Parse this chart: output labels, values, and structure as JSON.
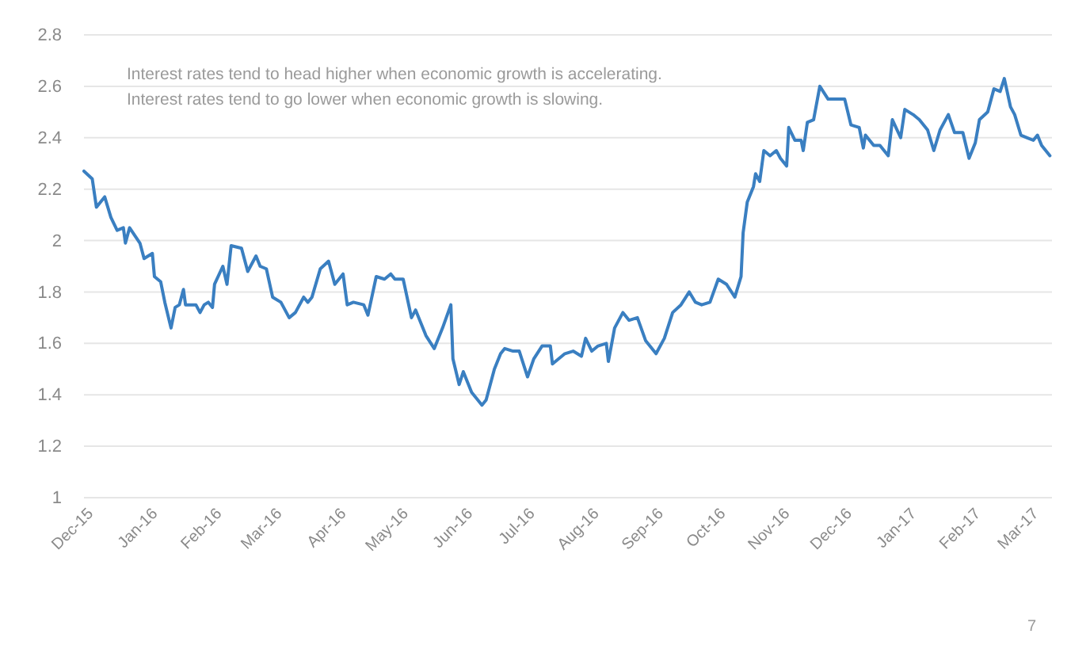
{
  "chart_data": {
    "type": "line",
    "x": [
      "2015-12-01",
      "2015-12-05",
      "2015-12-07",
      "2015-12-11",
      "2015-12-14",
      "2015-12-17",
      "2015-12-20",
      "2015-12-21",
      "2015-12-23",
      "2015-12-28",
      "2015-12-30",
      "2016-01-03",
      "2016-01-04",
      "2016-01-07",
      "2016-01-09",
      "2016-01-12",
      "2016-01-14",
      "2016-01-16",
      "2016-01-18",
      "2016-01-19",
      "2016-01-24",
      "2016-01-26",
      "2016-01-28",
      "2016-01-30",
      "2016-02-01",
      "2016-02-02",
      "2016-02-06",
      "2016-02-08",
      "2016-02-10",
      "2016-02-15",
      "2016-02-18",
      "2016-02-22",
      "2016-02-24",
      "2016-02-27",
      "2016-03-01",
      "2016-03-05",
      "2016-03-09",
      "2016-03-12",
      "2016-03-16",
      "2016-03-18",
      "2016-03-20",
      "2016-03-24",
      "2016-03-28",
      "2016-03-31",
      "2016-04-04",
      "2016-04-06",
      "2016-04-09",
      "2016-04-14",
      "2016-04-16",
      "2016-04-20",
      "2016-04-24",
      "2016-04-27",
      "2016-04-29",
      "2016-05-03",
      "2016-05-07",
      "2016-05-09",
      "2016-05-14",
      "2016-05-18",
      "2016-05-22",
      "2016-05-26",
      "2016-05-27",
      "2016-05-30",
      "2016-06-01",
      "2016-06-05",
      "2016-06-10",
      "2016-06-12",
      "2016-06-16",
      "2016-06-19",
      "2016-06-21",
      "2016-06-25",
      "2016-06-28",
      "2016-07-02",
      "2016-07-05",
      "2016-07-09",
      "2016-07-13",
      "2016-07-14",
      "2016-07-20",
      "2016-07-24",
      "2016-07-28",
      "2016-07-30",
      "2016-08-02",
      "2016-08-05",
      "2016-08-09",
      "2016-08-10",
      "2016-08-13",
      "2016-08-17",
      "2016-08-20",
      "2016-08-24",
      "2016-08-28",
      "2016-09-02",
      "2016-09-06",
      "2016-09-10",
      "2016-09-14",
      "2016-09-18",
      "2016-09-21",
      "2016-09-24",
      "2016-09-28",
      "2016-10-02",
      "2016-10-06",
      "2016-10-10",
      "2016-10-13",
      "2016-10-14",
      "2016-10-16",
      "2016-10-19",
      "2016-10-20",
      "2016-10-22",
      "2016-10-24",
      "2016-10-27",
      "2016-10-30",
      "2016-11-01",
      "2016-11-04",
      "2016-11-05",
      "2016-11-08",
      "2016-11-11",
      "2016-11-12",
      "2016-11-14",
      "2016-11-17",
      "2016-11-20",
      "2016-11-24",
      "2016-11-27",
      "2016-12-02",
      "2016-12-05",
      "2016-12-09",
      "2016-12-11",
      "2016-12-12",
      "2016-12-16",
      "2016-12-19",
      "2016-12-23",
      "2016-12-25",
      "2016-12-29",
      "2016-12-31",
      "2017-01-04",
      "2017-01-07",
      "2017-01-11",
      "2017-01-14",
      "2017-01-17",
      "2017-01-21",
      "2017-01-24",
      "2017-01-28",
      "2017-01-31",
      "2017-02-03",
      "2017-02-05",
      "2017-02-09",
      "2017-02-12",
      "2017-02-15",
      "2017-02-17",
      "2017-02-20",
      "2017-02-22",
      "2017-02-25",
      "2017-02-28",
      "2017-03-03",
      "2017-03-05",
      "2017-03-07",
      "2017-03-11"
    ],
    "series": [
      {
        "color": "#3a7fc1",
        "values": [
          2.27,
          2.24,
          2.13,
          2.17,
          2.09,
          2.04,
          2.05,
          1.99,
          2.05,
          1.99,
          1.93,
          1.95,
          1.86,
          1.84,
          1.76,
          1.66,
          1.74,
          1.75,
          1.81,
          1.75,
          1.75,
          1.72,
          1.75,
          1.76,
          1.74,
          1.83,
          1.9,
          1.83,
          1.98,
          1.97,
          1.88,
          1.94,
          1.9,
          1.89,
          1.78,
          1.76,
          1.7,
          1.72,
          1.78,
          1.76,
          1.78,
          1.89,
          1.92,
          1.83,
          1.87,
          1.75,
          1.76,
          1.75,
          1.71,
          1.86,
          1.85,
          1.87,
          1.85,
          1.85,
          1.7,
          1.73,
          1.63,
          1.58,
          1.66,
          1.75,
          1.54,
          1.44,
          1.49,
          1.41,
          1.36,
          1.38,
          1.5,
          1.56,
          1.58,
          1.57,
          1.57,
          1.47,
          1.54,
          1.59,
          1.59,
          1.52,
          1.56,
          1.57,
          1.55,
          1.62,
          1.57,
          1.59,
          1.6,
          1.53,
          1.66,
          1.72,
          1.69,
          1.7,
          1.61,
          1.56,
          1.62,
          1.72,
          1.75,
          1.8,
          1.76,
          1.75,
          1.76,
          1.85,
          1.83,
          1.78,
          1.86,
          2.03,
          2.15,
          2.21,
          2.26,
          2.23,
          2.35,
          2.33,
          2.35,
          2.32,
          2.29,
          2.44,
          2.39,
          2.39,
          2.35,
          2.46,
          2.47,
          2.6,
          2.55,
          2.55,
          2.55,
          2.45,
          2.44,
          2.36,
          2.41,
          2.37,
          2.37,
          2.33,
          2.47,
          2.4,
          2.51,
          2.49,
          2.47,
          2.43,
          2.35,
          2.43,
          2.49,
          2.42,
          2.42,
          2.32,
          2.38,
          2.47,
          2.5,
          2.59,
          2.58,
          2.63,
          2.52,
          2.49,
          2.41,
          2.4,
          2.39,
          2.41,
          2.37,
          2.33
        ]
      }
    ],
    "xlim": [
      "2015-12-01",
      "2017-03-12"
    ],
    "xticks": [
      {
        "value": "2015-12-01",
        "label": "Dec-15"
      },
      {
        "value": "2016-01-01",
        "label": "Jan-16"
      },
      {
        "value": "2016-02-01",
        "label": "Feb-16"
      },
      {
        "value": "2016-03-01",
        "label": "Mar-16"
      },
      {
        "value": "2016-04-01",
        "label": "Apr-16"
      },
      {
        "value": "2016-05-01",
        "label": "May-16"
      },
      {
        "value": "2016-06-01",
        "label": "Jun-16"
      },
      {
        "value": "2016-07-01",
        "label": "Jul-16"
      },
      {
        "value": "2016-08-01",
        "label": "Aug-16"
      },
      {
        "value": "2016-09-01",
        "label": "Sep-16"
      },
      {
        "value": "2016-10-01",
        "label": "Oct-16"
      },
      {
        "value": "2016-11-01",
        "label": "Nov-16"
      },
      {
        "value": "2016-12-01",
        "label": "Dec-16"
      },
      {
        "value": "2017-01-01",
        "label": "Jan-17"
      },
      {
        "value": "2017-02-01",
        "label": "Feb-17"
      },
      {
        "value": "2017-03-01",
        "label": "Mar-17"
      }
    ],
    "ylim": [
      1,
      2.8
    ],
    "yticks": [
      1,
      1.2,
      1.4,
      1.6,
      1.8,
      2,
      2.2,
      2.4,
      2.6,
      2.8
    ],
    "grid": "y",
    "marker": "none",
    "line_style": "solid",
    "annotations": [
      "Interest rates tend to head higher when economic growth is accelerating.",
      "Interest rates tend to go lower when economic growth is slowing.",
      "7"
    ]
  }
}
